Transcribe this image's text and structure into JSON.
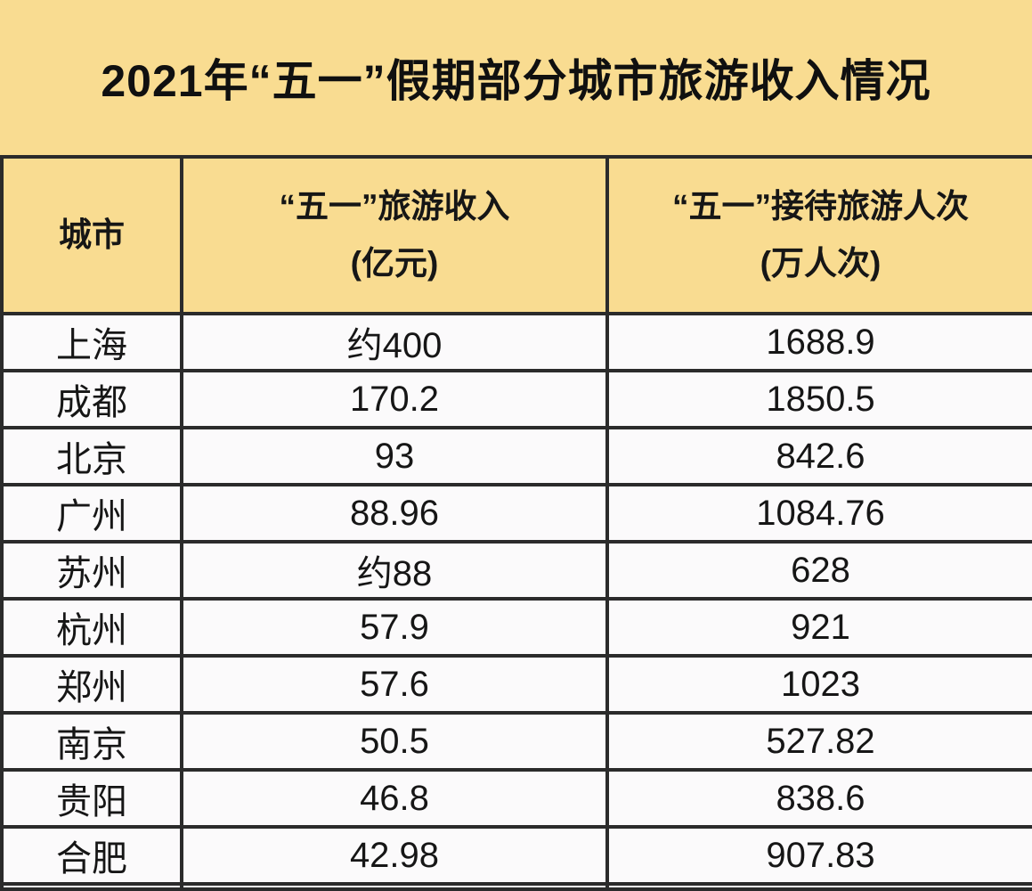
{
  "title": "2021年“五一”假期部分城市旅游收入情况",
  "header": {
    "city": "城市",
    "income_line1": "“五一”旅游收入",
    "income_line2": "(亿元)",
    "visitors_line1": "“五一”接待旅游人次",
    "visitors_line2": "(万人次)"
  },
  "rows": [
    {
      "city": "上海",
      "income": "约400",
      "visitors": "1688.9"
    },
    {
      "city": "成都",
      "income": "170.2",
      "visitors": "1850.5"
    },
    {
      "city": "北京",
      "income": "93",
      "visitors": "842.6"
    },
    {
      "city": "广州",
      "income": "88.96",
      "visitors": "1084.76"
    },
    {
      "city": "苏州",
      "income": "约88",
      "visitors": "628"
    },
    {
      "city": "杭州",
      "income": "57.9",
      "visitors": "921"
    },
    {
      "city": "郑州",
      "income": "57.6",
      "visitors": "1023"
    },
    {
      "city": "南京",
      "income": "50.5",
      "visitors": "527.82"
    },
    {
      "city": "贵阳",
      "income": "46.8",
      "visitors": "838.6"
    },
    {
      "city": "合肥",
      "income": "42.98",
      "visitors": "907.83"
    }
  ],
  "colors": {
    "banner_bg": "#F9DC91",
    "row_bg": "#FBFAFB",
    "border": "#2B2B2B",
    "text": "#161616"
  },
  "chart_data": {
    "type": "table",
    "title": "2021年“五一”假期部分城市旅游收入情况",
    "columns": [
      "城市",
      "“五一”旅游收入(亿元)",
      "“五一”接待旅游人次(万人次)"
    ],
    "rows": [
      [
        "上海",
        "约400",
        "1688.9"
      ],
      [
        "成都",
        "170.2",
        "1850.5"
      ],
      [
        "北京",
        "93",
        "842.6"
      ],
      [
        "广州",
        "88.96",
        "1084.76"
      ],
      [
        "苏州",
        "约88",
        "628"
      ],
      [
        "杭州",
        "57.9",
        "921"
      ],
      [
        "郑州",
        "57.6",
        "1023"
      ],
      [
        "南京",
        "50.5",
        "527.82"
      ],
      [
        "贵阳",
        "46.8",
        "838.6"
      ],
      [
        "合肥",
        "42.98",
        "907.83"
      ]
    ],
    "notes": "income values 约400 and 约88 are approximate (约 = approximately); numeric income series: [400, 170.2, 93, 88.96, 88, 57.9, 57.6, 50.5, 46.8, 42.98]; visitors series (万人次): [1688.9, 1850.5, 842.6, 1084.76, 628, 921, 1023, 527.82, 838.6, 907.83]"
  }
}
